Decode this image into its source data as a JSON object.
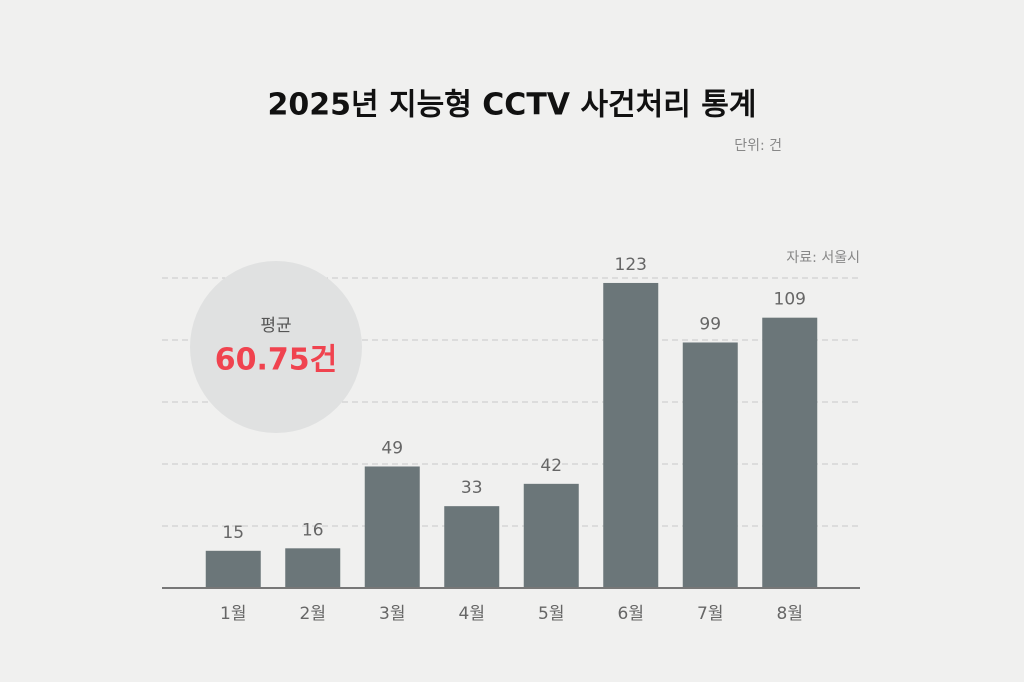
{
  "chart_data": {
    "type": "bar",
    "title": "2025년 지능형 CCTV 사건처리 통계",
    "unit_note": "단위: 건",
    "source": "자료: 서울시",
    "average_label": "평균",
    "average_value": "60.75건",
    "categories": [
      "1월",
      "2월",
      "3월",
      "4월",
      "5월",
      "6월",
      "7월",
      "8월"
    ],
    "values": [
      15,
      16,
      49,
      33,
      42,
      123,
      99,
      109
    ],
    "color": "#6b7679",
    "ylim": [
      0,
      125
    ],
    "yticks": [
      25,
      50,
      75,
      100,
      125
    ],
    "grid": true
  }
}
